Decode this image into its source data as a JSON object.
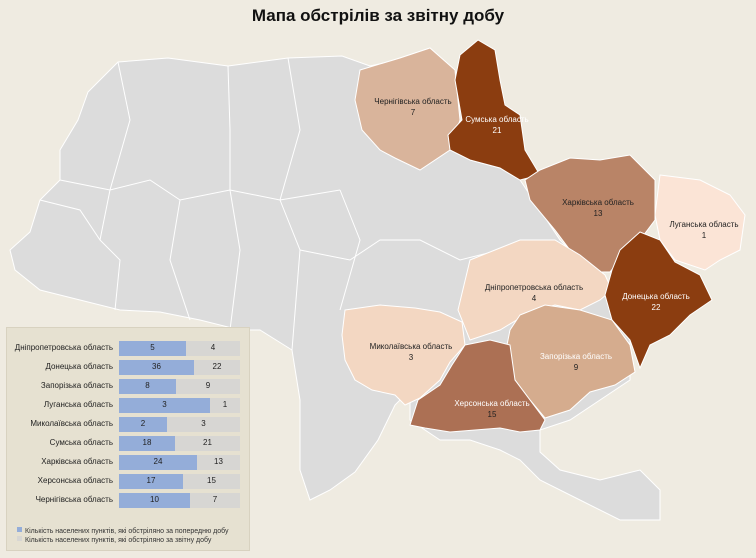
{
  "title": "Мапа обстрілів за звітну добу",
  "colors": {
    "background": "#efebe1",
    "neutral_region": "#dcdcdc",
    "level_1": "#fbe4d6",
    "level_2": "#f2cdb3",
    "level_3": "#d7a98a",
    "level_4": "#b67f5e",
    "level_5": "#8b3d10",
    "bar_previous": "#94add9",
    "bar_current": "#d7d6d3"
  },
  "regions": [
    {
      "name": "Чернігівська область",
      "value": "7",
      "color": "#d9b49b"
    },
    {
      "name": "Сумська область",
      "value": "21",
      "color": "#8b3d10"
    },
    {
      "name": "Харківська область",
      "value": "13",
      "color": "#b98467"
    },
    {
      "name": "Луганська область",
      "value": "1",
      "color": "#fbe4d6"
    },
    {
      "name": "Дніпропетровська область",
      "value": "4",
      "color": "#f3d7c2"
    },
    {
      "name": "Донецька область",
      "value": "22",
      "color": "#8b3d10"
    },
    {
      "name": "Миколаївська область",
      "value": "3",
      "color": "#f3d7c2"
    },
    {
      "name": "Запорізька область",
      "value": "9",
      "color": "#d5ac8e"
    },
    {
      "name": "Херсонська область",
      "value": "15",
      "color": "#ac7054"
    }
  ],
  "chart_data": {
    "type": "bar",
    "categories": [
      "Дніпропетровська область",
      "Донецька область",
      "Запорізька область",
      "Луганська область",
      "Миколаївська область",
      "Сумська область",
      "Харківська область",
      "Херсонська область",
      "Чернігівська область"
    ],
    "series": [
      {
        "name": "Кількість населених пунктів, які обстріляно за попередню добу",
        "values": [
          5,
          36,
          8,
          3,
          2,
          18,
          24,
          17,
          10
        ]
      },
      {
        "name": "Кількість населених пунктів, які обстріляно за звітну добу",
        "values": [
          4,
          22,
          9,
          1,
          3,
          21,
          13,
          15,
          7
        ]
      }
    ],
    "stacked": true
  }
}
